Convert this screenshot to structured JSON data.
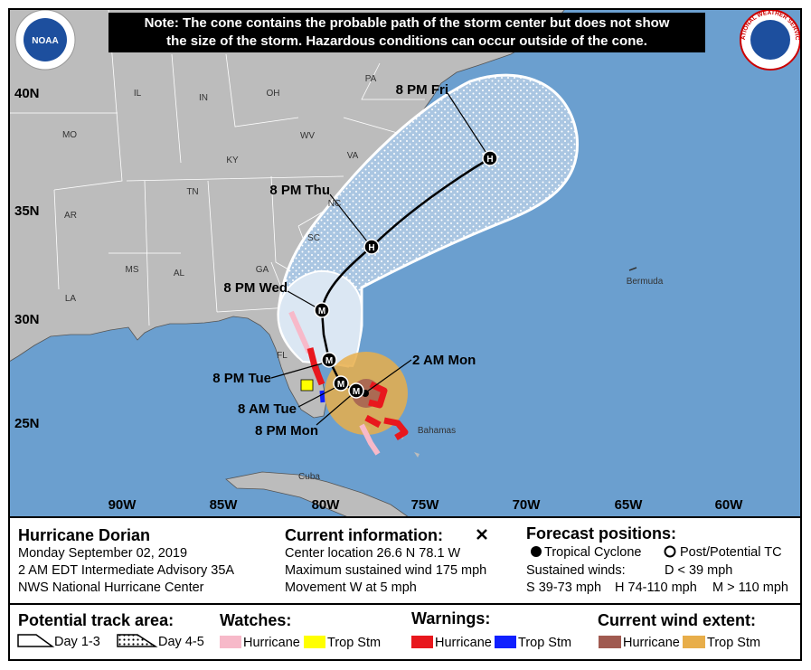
{
  "header": {
    "note_lines": [
      "Note: The cone contains the probable path of the storm center but does not show",
      "the size of the storm. Hazardous conditions can occur outside of the cone."
    ],
    "noaa_logo": "NOAA",
    "nws_logo": "NATIONAL WEATHER SERVICE"
  },
  "map": {
    "latitude_labels": [
      "40N",
      "35N",
      "30N",
      "25N"
    ],
    "longitude_labels": [
      "90W",
      "85W",
      "80W",
      "75W",
      "70W",
      "65W",
      "60W"
    ],
    "places": [
      "PA",
      "IL",
      "IN",
      "OH",
      "MO",
      "KY",
      "WV",
      "VA",
      "TN",
      "NC",
      "SC",
      "AR",
      "MS",
      "AL",
      "GA",
      "LA",
      "FL",
      "Bermuda",
      "Bahamas",
      "Cuba"
    ],
    "current_position": "2 AM Mon",
    "forecast_points": [
      {
        "time": "8 PM Mon",
        "marker": "M"
      },
      {
        "time": "8 AM Tue",
        "marker": "M"
      },
      {
        "time": "8 PM Tue",
        "marker": "M"
      },
      {
        "time": "8 PM Wed",
        "marker": "M"
      },
      {
        "time": "8 PM Thu",
        "marker": "H"
      },
      {
        "time": "8 PM Fri",
        "marker": "H"
      }
    ]
  },
  "info": {
    "storm": "Hurricane Dorian",
    "date": "Monday September 02, 2019",
    "advisory": "2 AM EDT Intermediate Advisory 35A",
    "office": "NWS National Hurricane Center"
  },
  "current": {
    "title": "Current information:",
    "lines": [
      "Center location 26.6 N 78.1 W",
      "Maximum sustained wind 175 mph",
      "Movement W at 5 mph"
    ]
  },
  "forecast_key": {
    "title": "Forecast positions:",
    "tropical_cyclone": "Tropical Cyclone",
    "post_tropical": "Post/Potential TC",
    "winds_title": "Sustained winds:",
    "d": "D < 39 mph",
    "s": "S 39-73 mph",
    "h": "H 74-110 mph",
    "m": "M > 110 mph"
  },
  "legend": {
    "track_title": "Potential track area:",
    "day_1_3": "Day 1-3",
    "day_4_5": "Day 4-5",
    "watches_title": "Watches:",
    "watch_hurricane": "Hurricane",
    "watch_trop_stm": "Trop Stm",
    "warnings_title": "Warnings:",
    "warning_hurricane": "Hurricane",
    "warning_trop_stm": "Trop Stm",
    "wind_title": "Current wind extent:",
    "wind_hurricane": "Hurricane",
    "wind_trop_stm": "Trop Stm"
  }
}
